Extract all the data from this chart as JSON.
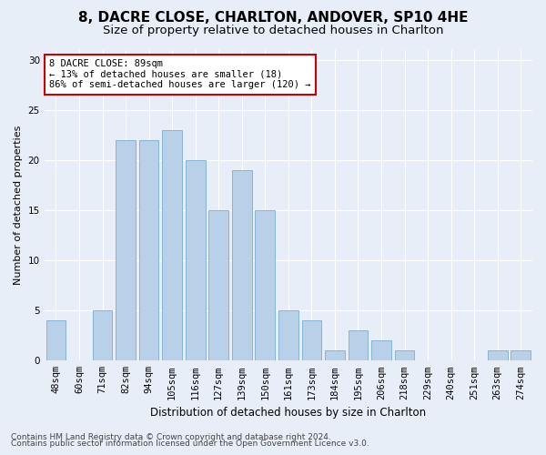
{
  "title1": "8, DACRE CLOSE, CHARLTON, ANDOVER, SP10 4HE",
  "title2": "Size of property relative to detached houses in Charlton",
  "xlabel": "Distribution of detached houses by size in Charlton",
  "ylabel": "Number of detached properties",
  "categories": [
    "48sqm",
    "60sqm",
    "71sqm",
    "82sqm",
    "94sqm",
    "105sqm",
    "116sqm",
    "127sqm",
    "139sqm",
    "150sqm",
    "161sqm",
    "173sqm",
    "184sqm",
    "195sqm",
    "206sqm",
    "218sqm",
    "229sqm",
    "240sqm",
    "251sqm",
    "263sqm",
    "274sqm"
  ],
  "values": [
    4,
    0,
    5,
    22,
    22,
    23,
    20,
    15,
    19,
    15,
    5,
    4,
    1,
    3,
    2,
    1,
    0,
    0,
    0,
    1,
    1
  ],
  "bar_color": "#b8d0e8",
  "bar_edge_color": "#7aaed0",
  "annotation_line1": "8 DACRE CLOSE: 89sqm",
  "annotation_line2": "← 13% of detached houses are smaller (18)",
  "annotation_line3": "86% of semi-detached houses are larger (120) →",
  "annotation_box_facecolor": "#ffffff",
  "annotation_box_edgecolor": "#cc0000",
  "ylim": [
    0,
    31
  ],
  "yticks": [
    0,
    5,
    10,
    15,
    20,
    25,
    30
  ],
  "footer1": "Contains HM Land Registry data © Crown copyright and database right 2024.",
  "footer2": "Contains public sector information licensed under the Open Government Licence v3.0.",
  "bg_color": "#e8eef8",
  "plot_bg_color": "#e8eef8",
  "grid_color": "#ffffff",
  "title1_fontsize": 11,
  "title2_fontsize": 9.5,
  "xlabel_fontsize": 8.5,
  "ylabel_fontsize": 8,
  "tick_fontsize": 7.5,
  "footer_fontsize": 6.5
}
